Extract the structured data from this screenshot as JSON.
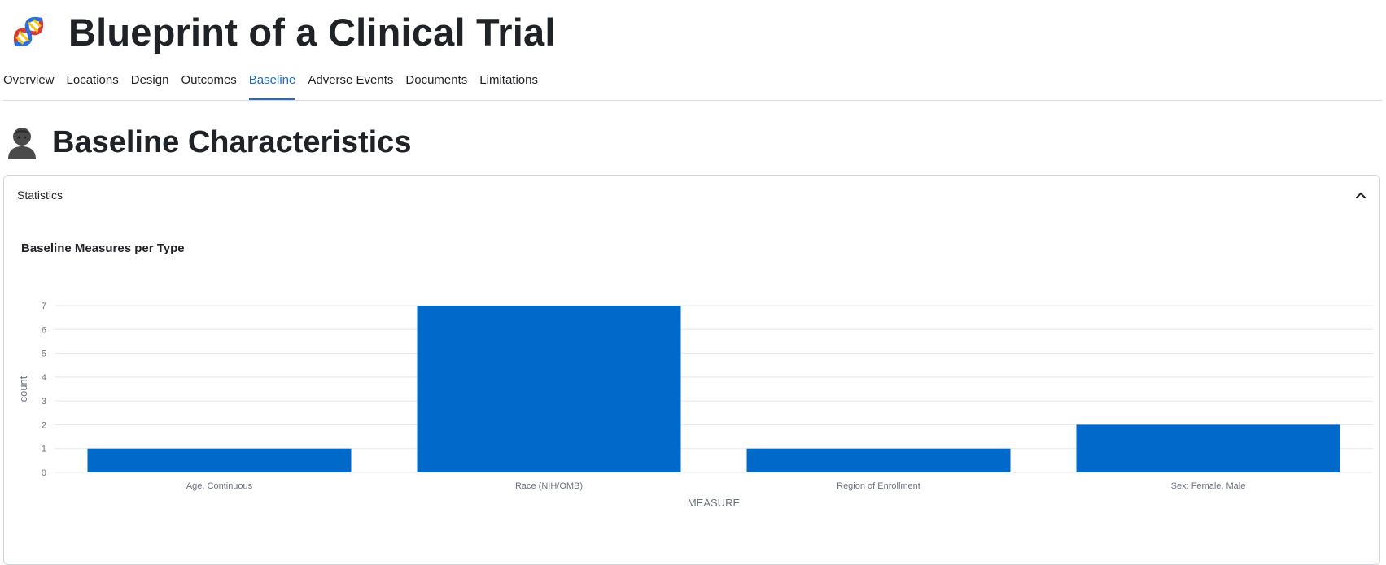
{
  "header": {
    "title": "Blueprint of a Clinical Trial",
    "icon": "dna-icon"
  },
  "tabs": [
    {
      "label": "Overview",
      "active": false
    },
    {
      "label": "Locations",
      "active": false
    },
    {
      "label": "Design",
      "active": false
    },
    {
      "label": "Outcomes",
      "active": false
    },
    {
      "label": "Baseline",
      "active": true
    },
    {
      "label": "Adverse Events",
      "active": false
    },
    {
      "label": "Documents",
      "active": false
    },
    {
      "label": "Limitations",
      "active": false
    }
  ],
  "section": {
    "title": "Baseline Characteristics",
    "icon": "person-icon"
  },
  "card": {
    "header_label": "Statistics",
    "toggle_icon": "chevron-up-icon",
    "expanded": true
  },
  "colors": {
    "accent": "#1f6bc4",
    "bar": "#0069c9",
    "text": "#1f2328",
    "axis_text": "#6b7280",
    "gridline": "#e5e7eb"
  },
  "chart_data": {
    "type": "bar",
    "title": "Baseline Measures per Type",
    "categories": [
      "Age, Continuous",
      "Race (NIH/OMB)",
      "Region of Enrollment",
      "Sex: Female, Male"
    ],
    "values": [
      1,
      7,
      1,
      2
    ],
    "xlabel": "MEASURE",
    "ylabel": "count",
    "ylim": [
      0,
      7
    ],
    "yticks": [
      "0",
      "1",
      "2",
      "3",
      "4",
      "5",
      "6",
      "7"
    ],
    "grid": true,
    "legend": false
  }
}
